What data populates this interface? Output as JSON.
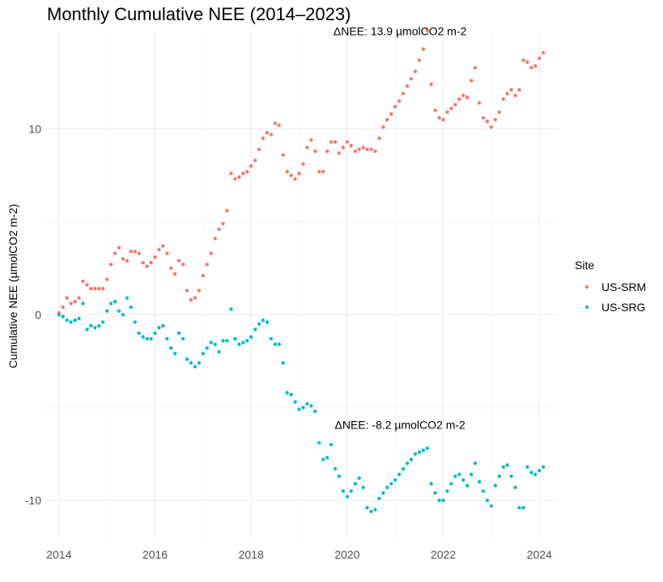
{
  "chart_data": {
    "type": "scatter",
    "title": "Monthly Cumulative NEE (2014–2023)",
    "xlabel": "",
    "ylabel": "Cumulative NEE (µmolCO2 m-2)",
    "xlim": [
      2013.75,
      2024.4
    ],
    "ylim": [
      -12,
      15.2
    ],
    "xticks": [
      2014,
      2016,
      2018,
      2020,
      2022,
      2024
    ],
    "xtick_labels": [
      "2014",
      "2016",
      "2018",
      "2020",
      "2022",
      "2024"
    ],
    "yticks": [
      -10,
      0,
      10
    ],
    "ytick_labels": [
      "-10",
      "0",
      "10"
    ],
    "grid": true,
    "legend": {
      "title": "Site",
      "position": "right",
      "entries": [
        "US-SRM",
        "US-SRG"
      ]
    },
    "annotations": [
      {
        "text": "ΔNEE: 13.9 µmolCO2 m-2",
        "x": 2021.1,
        "y": 15.05
      },
      {
        "text": "ΔNEE: -8.2 µmolCO2 m-2",
        "x": 2021.1,
        "y": -6.15
      }
    ],
    "series": [
      {
        "name": "US-SRM",
        "color": "#F8766D",
        "x_start": "2014-01",
        "frequency": "monthly",
        "values": [
          0.1,
          0.4,
          0.9,
          0.6,
          0.7,
          0.9,
          1.8,
          1.6,
          1.4,
          1.4,
          1.4,
          1.4,
          1.9,
          2.7,
          3.3,
          3.6,
          3.0,
          2.9,
          3.4,
          3.4,
          3.3,
          2.8,
          2.6,
          2.8,
          3.1,
          3.5,
          3.7,
          3.3,
          2.5,
          2.2,
          2.9,
          2.7,
          1.3,
          0.8,
          0.9,
          1.3,
          2.1,
          2.7,
          3.3,
          4.1,
          4.6,
          4.9,
          5.6,
          7.6,
          7.3,
          7.4,
          7.6,
          7.7,
          8.0,
          8.3,
          8.9,
          9.5,
          9.8,
          9.7,
          10.3,
          10.2,
          8.6,
          7.7,
          7.5,
          7.3,
          7.6,
          8.1,
          9.0,
          9.4,
          8.8,
          7.7,
          7.7,
          8.8,
          9.3,
          9.3,
          8.7,
          9.0,
          9.3,
          9.1,
          8.8,
          8.9,
          9.0,
          8.9,
          8.9,
          8.8,
          9.5,
          10.1,
          10.5,
          10.8,
          11.2,
          11.5,
          11.9,
          12.3,
          12.7,
          13.1,
          13.7,
          14.3,
          15.3,
          12.4,
          11.0,
          10.6,
          10.5,
          10.9,
          11.1,
          11.3,
          11.6,
          11.8,
          11.7,
          12.6,
          13.3,
          11.4,
          10.6,
          10.4,
          10.1,
          10.5,
          10.9,
          11.6,
          11.9,
          12.1,
          11.8,
          12.1,
          13.7,
          13.6,
          13.3,
          13.4,
          13.8,
          14.1
        ]
      },
      {
        "name": "US-SRG",
        "color": "#00BFC4",
        "x_start": "2014-01",
        "frequency": "monthly",
        "values": [
          0.0,
          -0.1,
          -0.3,
          -0.4,
          -0.3,
          -0.2,
          0.6,
          -0.8,
          -0.6,
          -0.7,
          -0.6,
          -0.4,
          0.2,
          0.6,
          0.7,
          0.2,
          -0.0,
          0.9,
          0.4,
          -0.4,
          -1.0,
          -1.2,
          -1.3,
          -1.3,
          -1.0,
          -0.7,
          -0.6,
          -1.3,
          -1.8,
          -2.1,
          -1.0,
          -1.3,
          -2.4,
          -2.6,
          -2.8,
          -2.6,
          -2.1,
          -1.8,
          -1.5,
          -1.6,
          -2.0,
          -1.4,
          -1.4,
          0.3,
          -1.3,
          -1.6,
          -1.5,
          -1.4,
          -1.2,
          -0.8,
          -0.5,
          -0.3,
          -0.4,
          -1.3,
          -1.6,
          -1.6,
          -2.6,
          -4.2,
          -4.3,
          -4.7,
          -5.1,
          -5.0,
          -4.8,
          -4.9,
          -5.2,
          -6.9,
          -7.8,
          -7.7,
          -7.0,
          -8.3,
          -8.7,
          -9.5,
          -9.8,
          -9.5,
          -9.1,
          -8.8,
          -9.3,
          -10.4,
          -10.6,
          -10.5,
          -9.9,
          -9.6,
          -9.3,
          -9.1,
          -8.9,
          -8.6,
          -8.3,
          -8.0,
          -7.8,
          -7.5,
          -7.4,
          -7.3,
          -7.2,
          -9.1,
          -9.6,
          -10.0,
          -10.0,
          -9.5,
          -9.1,
          -8.7,
          -8.6,
          -8.9,
          -9.2,
          -8.6,
          -8.0,
          -9.0,
          -9.5,
          -10.0,
          -10.3,
          -9.2,
          -8.7,
          -8.2,
          -8.1,
          -8.7,
          -9.3,
          -10.4,
          -10.4,
          -8.2,
          -8.5,
          -8.6,
          -8.4,
          -8.2
        ]
      }
    ]
  }
}
